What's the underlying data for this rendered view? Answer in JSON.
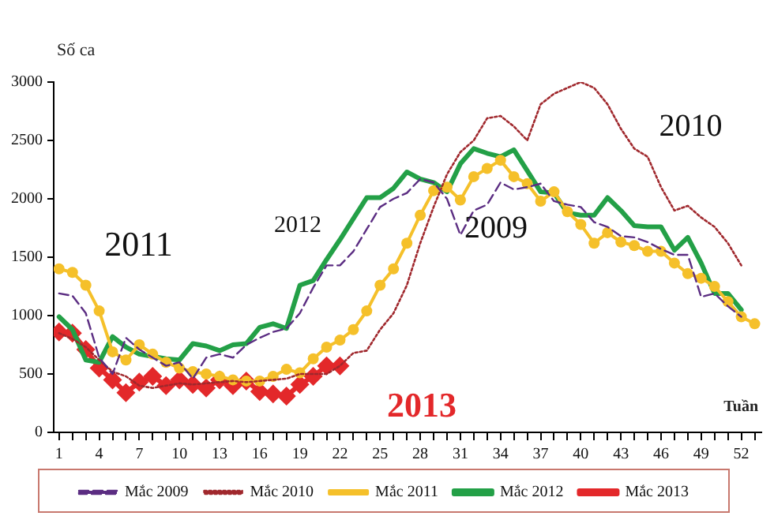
{
  "chart_data": {
    "type": "line",
    "ylabel": "Số ca",
    "xlabel": "Tuần",
    "x": [
      1,
      2,
      3,
      4,
      5,
      6,
      7,
      8,
      9,
      10,
      11,
      12,
      13,
      14,
      15,
      16,
      17,
      18,
      19,
      20,
      21,
      22,
      23,
      24,
      25,
      26,
      27,
      28,
      29,
      30,
      31,
      32,
      33,
      34,
      35,
      36,
      37,
      38,
      39,
      40,
      41,
      42,
      43,
      44,
      45,
      46,
      47,
      48,
      49,
      50,
      51,
      52,
      53
    ],
    "xlim": [
      0.6,
      53.5
    ],
    "xticks": [
      1,
      {
        "value": 2,
        "label": null
      },
      {
        "value": 3,
        "label": null
      },
      4,
      {
        "value": 5,
        "label": null
      },
      {
        "value": 6,
        "label": null
      },
      7,
      {
        "value": 8,
        "label": null
      },
      {
        "value": 9,
        "label": null
      },
      10,
      {
        "value": 11,
        "label": null
      },
      {
        "value": 12,
        "label": null
      },
      13,
      {
        "value": 14,
        "label": null
      },
      {
        "value": 15,
        "label": null
      },
      16,
      {
        "value": 17,
        "label": null
      },
      {
        "value": 18,
        "label": null
      },
      19,
      {
        "value": 20,
        "label": null
      },
      {
        "value": 21,
        "label": null
      },
      22,
      {
        "value": 23,
        "label": null
      },
      {
        "value": 24,
        "label": null
      },
      25,
      {
        "value": 26,
        "label": null
      },
      {
        "value": 27,
        "label": null
      },
      28,
      {
        "value": 29,
        "label": null
      },
      {
        "value": 30,
        "label": null
      },
      31,
      {
        "value": 32,
        "label": null
      },
      {
        "value": 33,
        "label": null
      },
      34,
      {
        "value": 35,
        "label": null
      },
      {
        "value": 36,
        "label": null
      },
      37,
      {
        "value": 38,
        "label": null
      },
      {
        "value": 39,
        "label": null
      },
      40,
      {
        "value": 41,
        "label": null
      },
      {
        "value": 42,
        "label": null
      },
      43,
      {
        "value": 44,
        "label": null
      },
      {
        "value": 45,
        "label": null
      },
      46,
      {
        "value": 47,
        "label": null
      },
      {
        "value": 48,
        "label": null
      },
      49,
      {
        "value": 50,
        "label": null
      },
      {
        "value": 51,
        "label": null
      },
      52,
      {
        "value": 53,
        "label": null
      }
    ],
    "ylim": [
      0,
      3000
    ],
    "yticks": [
      0,
      500,
      1000,
      1500,
      2000,
      2500,
      3000
    ],
    "grid": false,
    "legend": "bottom",
    "series": [
      {
        "name": "Mắc 2009",
        "color": "#5b2d82",
        "line_style": "dashed",
        "marker": "none",
        "values": [
          1190,
          1170,
          1020,
          640,
          500,
          810,
          710,
          640,
          570,
          600,
          460,
          640,
          670,
          640,
          750,
          810,
          860,
          890,
          1020,
          1240,
          1430,
          1430,
          1550,
          1740,
          1930,
          2000,
          2050,
          2170,
          2140,
          2000,
          1690,
          1900,
          1950,
          2140,
          2080,
          2100,
          2130,
          1980,
          1950,
          1930,
          1800,
          1760,
          1680,
          1670,
          1630,
          1570,
          1520,
          1520,
          1160,
          1190,
          1080,
          990,
          null
        ]
      },
      {
        "name": "Mắc 2010",
        "color": "#a0282d",
        "line_style": "dotted",
        "marker": "none",
        "values": [
          850,
          800,
          730,
          620,
          520,
          480,
          400,
          380,
          400,
          420,
          410,
          420,
          430,
          440,
          430,
          440,
          450,
          460,
          500,
          500,
          500,
          570,
          680,
          700,
          880,
          1020,
          1260,
          1620,
          1930,
          2210,
          2400,
          2500,
          2690,
          2710,
          2620,
          2500,
          2810,
          2900,
          2950,
          3000,
          2950,
          2810,
          2600,
          2430,
          2360,
          2100,
          1900,
          1940,
          1840,
          1760,
          1620,
          1430,
          null
        ]
      },
      {
        "name": "Mắc 2011",
        "color": "#f5c02a",
        "line_style": "solid",
        "marker": "circle",
        "values": [
          1400,
          1370,
          1260,
          1040,
          690,
          620,
          750,
          670,
          600,
          550,
          520,
          500,
          480,
          450,
          440,
          440,
          480,
          540,
          510,
          630,
          730,
          790,
          880,
          1040,
          1260,
          1400,
          1620,
          1860,
          2070,
          2100,
          1990,
          2190,
          2260,
          2330,
          2190,
          2130,
          1980,
          2060,
          1890,
          1780,
          1620,
          1710,
          1630,
          1600,
          1550,
          1550,
          1450,
          1360,
          1320,
          1250,
          1120,
          990,
          930
        ]
      },
      {
        "name": "Mắc 2012",
        "color": "#23a047",
        "line_style": "solid",
        "marker": "none",
        "values": [
          990,
          880,
          620,
          600,
          820,
          730,
          670,
          650,
          630,
          620,
          760,
          740,
          700,
          750,
          760,
          900,
          930,
          890,
          1260,
          1300,
          1480,
          1650,
          1830,
          2010,
          2010,
          2090,
          2230,
          2170,
          2140,
          2060,
          2300,
          2430,
          2390,
          2360,
          2420,
          2240,
          2060,
          2050,
          1880,
          1860,
          1860,
          2010,
          1900,
          1770,
          1760,
          1760,
          1560,
          1670,
          1450,
          1190,
          1190,
          1050,
          null
        ]
      },
      {
        "name": "Mắc 2013",
        "color": "#e3282a",
        "line_style": "solid",
        "marker": "diamond",
        "values": [
          860,
          850,
          710,
          550,
          450,
          340,
          430,
          480,
          400,
          450,
          410,
          380,
          450,
          400,
          440,
          350,
          330,
          310,
          410,
          480,
          570,
          570,
          null,
          null,
          null,
          null,
          null,
          null,
          null,
          null,
          null,
          null,
          null,
          null,
          null,
          null,
          null,
          null,
          null,
          null,
          null,
          null,
          null,
          null,
          null,
          null,
          null,
          null,
          null,
          null,
          null,
          null,
          null
        ]
      }
    ],
    "annotations": [
      "2011",
      "2012",
      "2009",
      "2010",
      "2013"
    ]
  }
}
